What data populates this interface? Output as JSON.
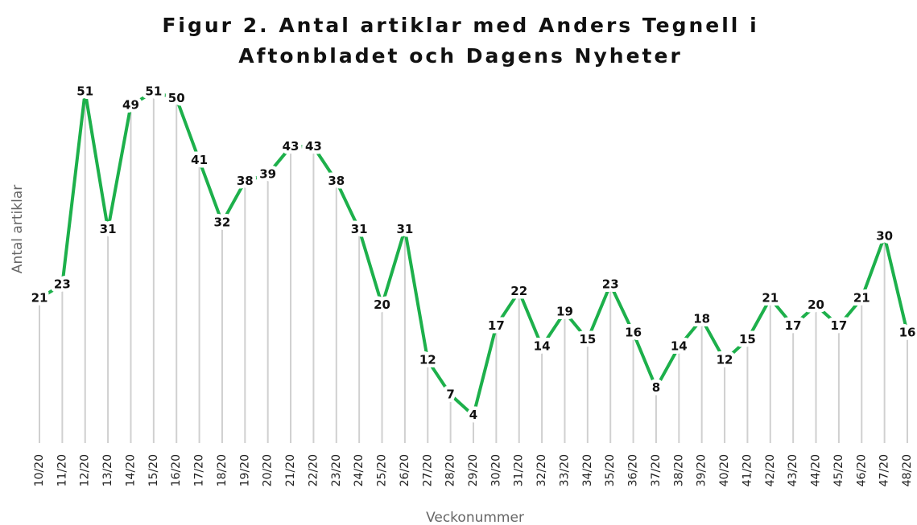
{
  "chart_data": {
    "type": "line",
    "title": [
      "Figur 2. Antal artiklar med Anders Tegnell i",
      "Aftonbladet och Dagens Nyheter"
    ],
    "y_label": "Antal artiklar",
    "x_label": "Veckonummer",
    "categories": [
      "10/20",
      "11/20",
      "12/20",
      "13/20",
      "14/20",
      "15/20",
      "16/20",
      "17/20",
      "18/20",
      "19/20",
      "20/20",
      "21/20",
      "22/20",
      "23/20",
      "24/20",
      "25/20",
      "26/20",
      "27/20",
      "28/20",
      "29/20",
      "30/20",
      "31/20",
      "32/20",
      "33/20",
      "34/20",
      "35/20",
      "36/20",
      "37/20",
      "38/20",
      "39/20",
      "40/20",
      "41/20",
      "42/20",
      "43/20",
      "44/20",
      "45/20",
      "46/20",
      "47/20",
      "48/20"
    ],
    "values": [
      21,
      23,
      51,
      31,
      49,
      51,
      50,
      41,
      32,
      38,
      39,
      43,
      43,
      38,
      31,
      20,
      31,
      12,
      7,
      4,
      17,
      22,
      14,
      19,
      15,
      23,
      16,
      8,
      14,
      18,
      12,
      15,
      21,
      17,
      20,
      17,
      21,
      30,
      16
    ],
    "color": "#1db04b",
    "ylim": [
      0,
      51
    ]
  }
}
